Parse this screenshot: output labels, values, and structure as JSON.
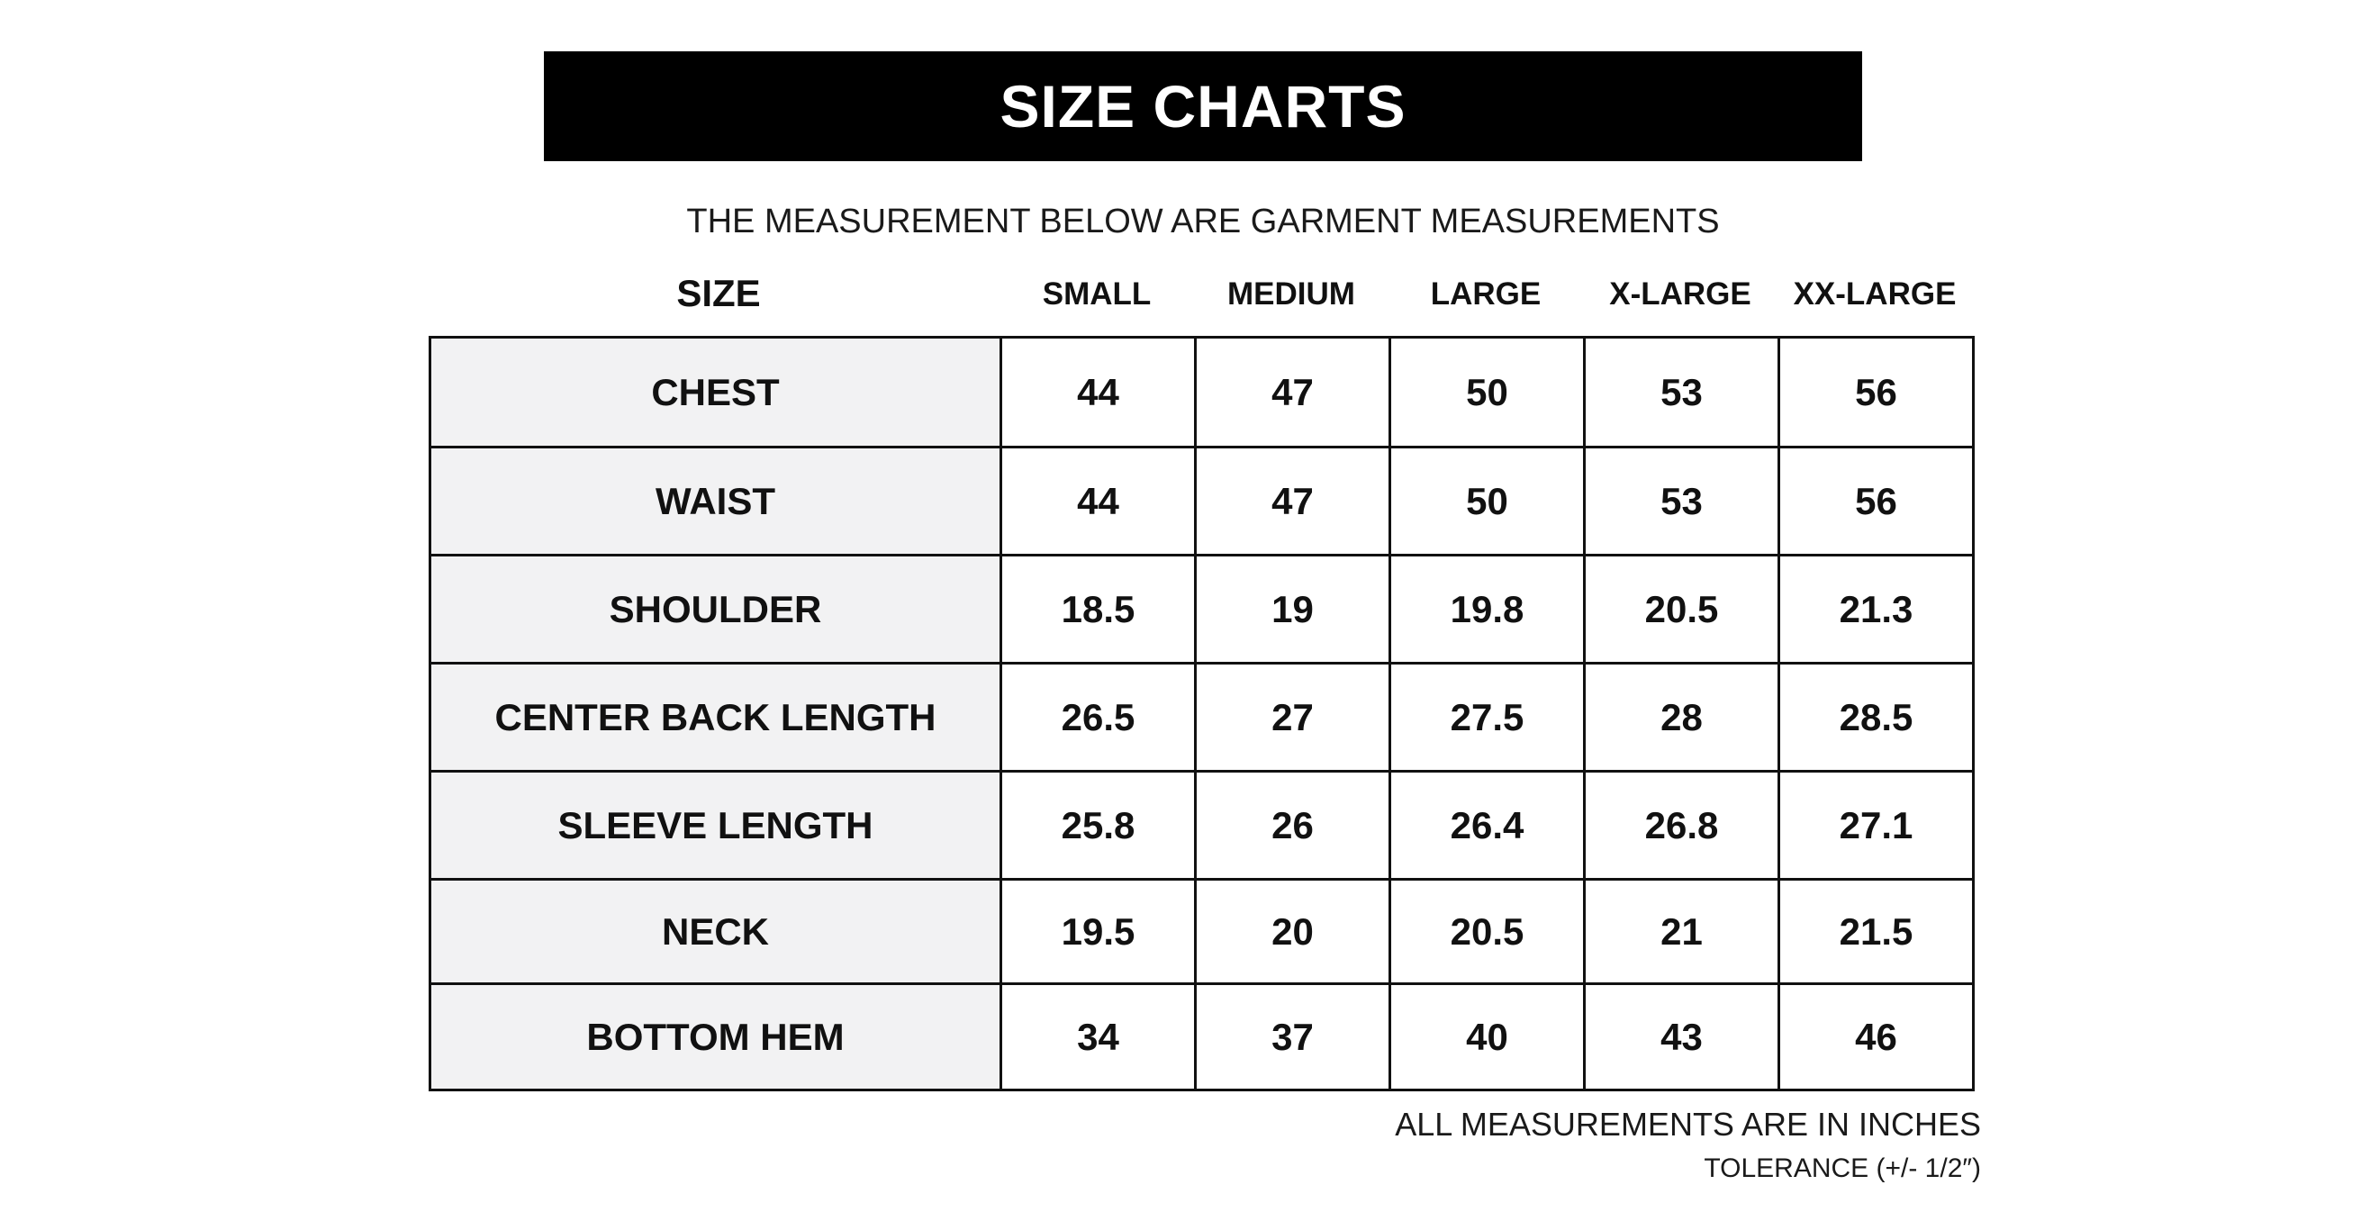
{
  "title": "SIZE CHARTS",
  "subtitle": "THE MEASUREMENT BELOW ARE GARMENT MEASUREMENTS",
  "size_label": "SIZE",
  "sizes": [
    "SMALL",
    "MEDIUM",
    "LARGE",
    "X-LARGE",
    "XX-LARGE"
  ],
  "rows": [
    {
      "label": "CHEST",
      "values": [
        "44",
        "47",
        "50",
        "53",
        "56"
      ]
    },
    {
      "label": "WAIST",
      "values": [
        "44",
        "47",
        "50",
        "53",
        "56"
      ]
    },
    {
      "label": "SHOULDER",
      "values": [
        "18.5",
        "19",
        "19.8",
        "20.5",
        "21.3"
      ]
    },
    {
      "label": "CENTER BACK LENGTH",
      "values": [
        "26.5",
        "27",
        "27.5",
        "28",
        "28.5"
      ]
    },
    {
      "label": "SLEEVE LENGTH",
      "values": [
        "25.8",
        "26",
        "26.4",
        "26.8",
        "27.1"
      ]
    },
    {
      "label": "NECK",
      "values": [
        "19.5",
        "20",
        "20.5",
        "21",
        "21.5"
      ]
    },
    {
      "label": "BOTTOM HEM",
      "values": [
        "34",
        "37",
        "40",
        "43",
        "46"
      ]
    }
  ],
  "notes": {
    "units": "ALL MEASUREMENTS ARE IN INCHES",
    "tolerance": "TOLERANCE (+/- 1/2″)"
  }
}
